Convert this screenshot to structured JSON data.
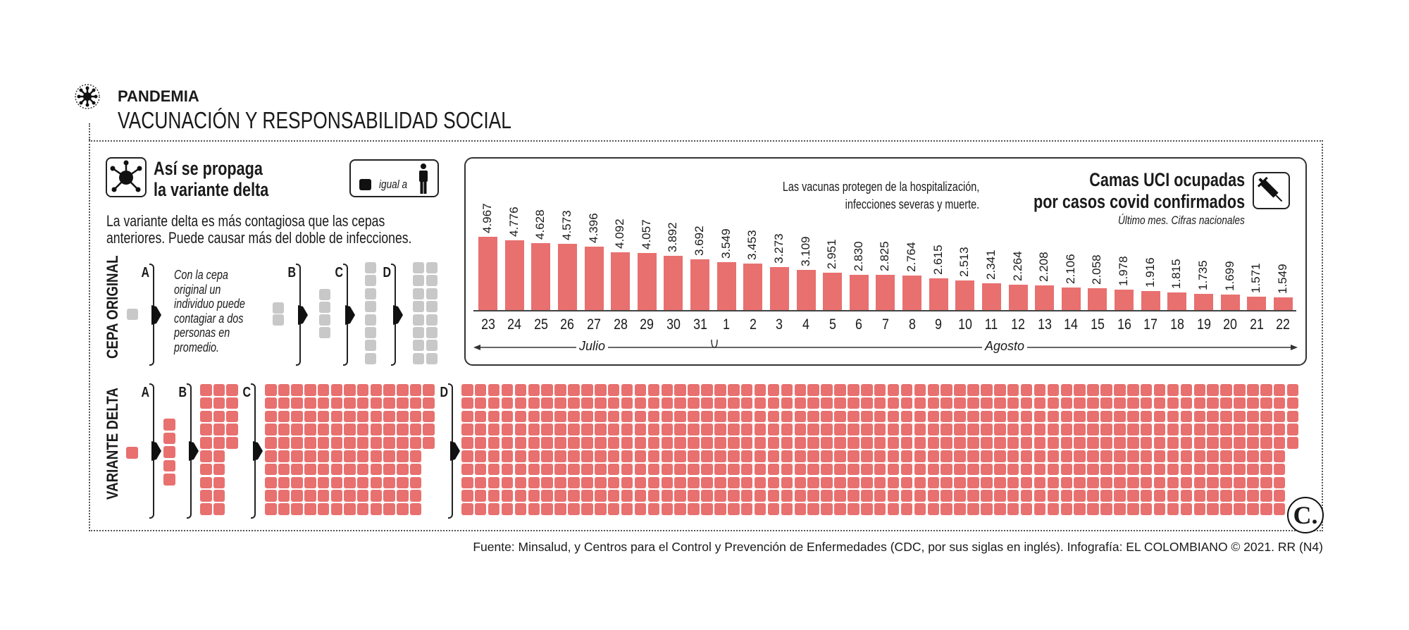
{
  "header": {
    "section": "PANDEMIA",
    "title": "VACUNACIÓN Y RESPONSABILIDAD SOCIAL",
    "icon": "virus-icon"
  },
  "left": {
    "title_lines": [
      "Así se propaga",
      "la variante delta"
    ],
    "legend_label": "igual a",
    "intro_lines": [
      "La variante delta es más contagiosa que las cepas",
      "anteriores. Puede causar más del doble de infecciones."
    ],
    "letters": [
      "A",
      "B",
      "C",
      "D"
    ],
    "cepa": {
      "label": "CEPA ORIGINAL",
      "text_lines": [
        "Con la cepa",
        "original un",
        "individuo puede",
        "contagiar a dos",
        "personas en",
        "promedio."
      ],
      "counts": [
        1,
        2,
        4,
        8,
        16
      ],
      "color": "#c8c8c8"
    },
    "delta": {
      "label": "VARIANTE DELTA",
      "counts": [
        1,
        5,
        25,
        125,
        625
      ],
      "color": "#e8706f"
    }
  },
  "chart_data": {
    "type": "bar",
    "title_lines": [
      "Camas UCI ocupadas",
      "por casos covid confirmados"
    ],
    "subtitle": "Último mes. Cifras nacionales",
    "note_lines": [
      "Las vacunas protegen de la hospitalización,",
      "infecciones severas y muerte."
    ],
    "categories": [
      "23",
      "24",
      "25",
      "26",
      "27",
      "28",
      "29",
      "30",
      "31",
      "1",
      "2",
      "3",
      "4",
      "5",
      "6",
      "7",
      "8",
      "9",
      "10",
      "11",
      "12",
      "13",
      "14",
      "15",
      "16",
      "17",
      "18",
      "19",
      "20",
      "21",
      "22"
    ],
    "values": [
      4967,
      4776,
      4628,
      4573,
      4396,
      4092,
      4057,
      3892,
      3692,
      3549,
      3453,
      3273,
      3109,
      2951,
      2830,
      2825,
      2764,
      2615,
      2513,
      2341,
      2264,
      2208,
      2106,
      2058,
      1978,
      1916,
      1815,
      1735,
      1699,
      1571,
      1549
    ],
    "value_labels": [
      "4.967",
      "4.776",
      "4.628",
      "4.573",
      "4.396",
      "4.092",
      "4.057",
      "3.892",
      "3.692",
      "3.549",
      "3.453",
      "3.273",
      "3.109",
      "2.951",
      "2.830",
      "2.825",
      "2.764",
      "2.615",
      "2.513",
      "2.341",
      "2.264",
      "2.208",
      "2.106",
      "2.058",
      "1.978",
      "1.916",
      "1.815",
      "1.735",
      "1.699",
      "1.571",
      "1.549"
    ],
    "months": [
      "Julio",
      "Agosto"
    ],
    "bar_color": "#e8706f",
    "icon": "syringe-icon"
  },
  "footer": {
    "source": "Fuente: Minsalud, y Centros para el Control y Prevención de Enfermedades (CDC, por sus siglas en inglés). Infografía: EL COLOMBIANO © 2021. RR (N4)",
    "logo": "C."
  }
}
